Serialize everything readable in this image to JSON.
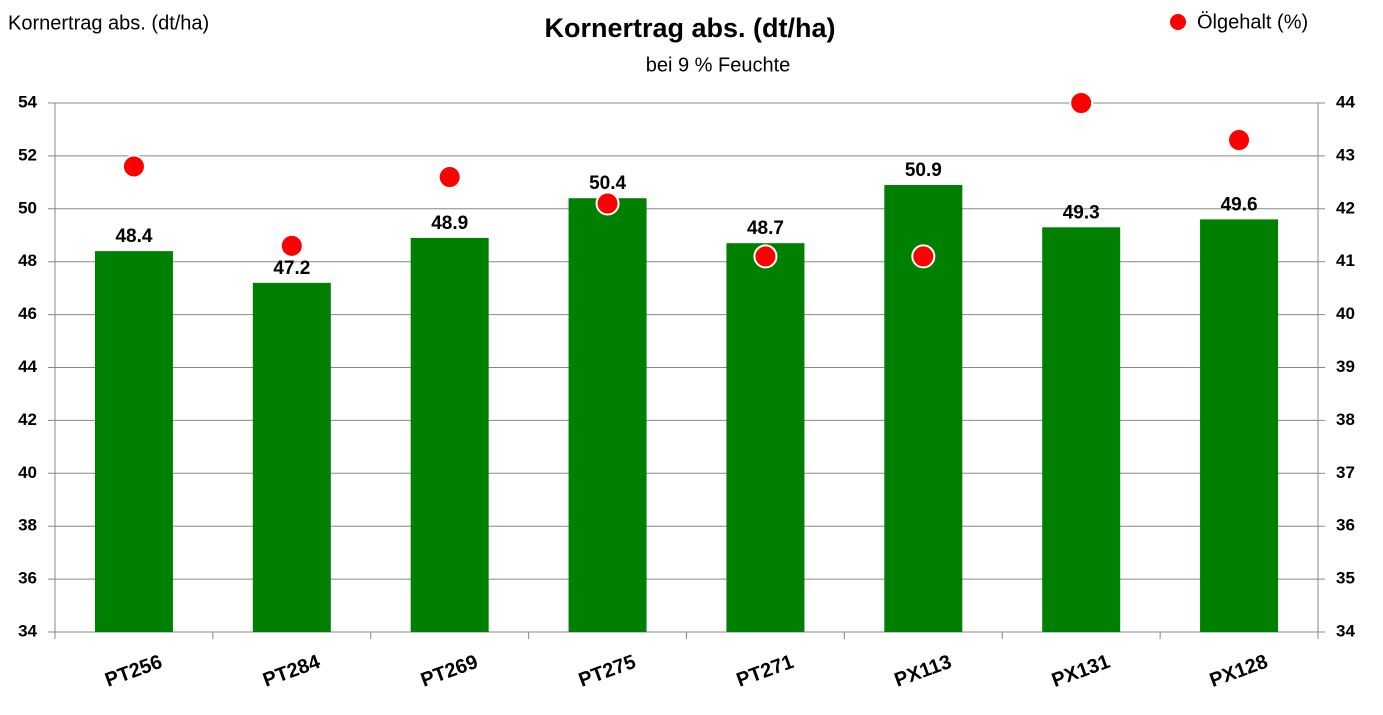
{
  "chart_data": {
    "type": "bar",
    "title": "Kornertrag abs. (dt/ha)",
    "subtitle": "bei 9 % Feuchte",
    "y_label": "Kornertrag abs. (dt/ha)",
    "categories": [
      "PT256",
      "PT284",
      "PT269",
      "PT275",
      "PT271",
      "PX113",
      "PX131",
      "PX128"
    ],
    "series": [
      {
        "type": "bar",
        "color": "#008000",
        "values": [
          48.4,
          47.2,
          48.9,
          50.4,
          48.7,
          50.9,
          49.3,
          49.6
        ]
      },
      {
        "type": "scatter",
        "name": "Ölgehalt (%)",
        "color": "#ff0000",
        "axis": "y2",
        "values": [
          42.8,
          41.3,
          42.6,
          42.1,
          41.1,
          41.1,
          44.0,
          43.3
        ]
      }
    ],
    "ylim": [
      34,
      54
    ],
    "yticks": [
      34,
      36,
      38,
      40,
      42,
      44,
      46,
      48,
      50,
      52,
      54
    ],
    "y2lim": [
      34,
      44
    ],
    "y2ticks": [
      34,
      35,
      36,
      37,
      38,
      39,
      40,
      41,
      42,
      43,
      44
    ],
    "grid": true,
    "legend": "top-right"
  }
}
